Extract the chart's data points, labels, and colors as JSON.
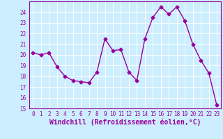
{
  "x": [
    0,
    1,
    2,
    3,
    4,
    5,
    6,
    7,
    8,
    9,
    10,
    11,
    12,
    13,
    14,
    15,
    16,
    17,
    18,
    19,
    20,
    21,
    22,
    23
  ],
  "y": [
    20.2,
    20.0,
    20.2,
    18.9,
    18.0,
    17.6,
    17.5,
    17.4,
    18.4,
    21.5,
    20.4,
    20.5,
    18.4,
    17.6,
    21.5,
    23.5,
    24.5,
    23.8,
    24.5,
    23.2,
    21.0,
    19.5,
    18.3,
    15.3
  ],
  "line_color": "#990099",
  "marker": "D",
  "marker_size": 2.5,
  "bg_color": "#cceeff",
  "grid_color": "#ffffff",
  "xlabel": "Windchill (Refroidissement éolien,°C)",
  "xlabel_color": "#990099",
  "ylim": [
    15,
    25
  ],
  "xlim": [
    -0.5,
    23.5
  ],
  "yticks": [
    15,
    16,
    17,
    18,
    19,
    20,
    21,
    22,
    23,
    24
  ],
  "xticks": [
    0,
    1,
    2,
    3,
    4,
    5,
    6,
    7,
    8,
    9,
    10,
    11,
    12,
    13,
    14,
    15,
    16,
    17,
    18,
    19,
    20,
    21,
    22,
    23
  ],
  "tick_color": "#990099",
  "tick_fontsize": 5.5,
  "xlabel_fontsize": 7.0,
  "line_width": 1.0
}
